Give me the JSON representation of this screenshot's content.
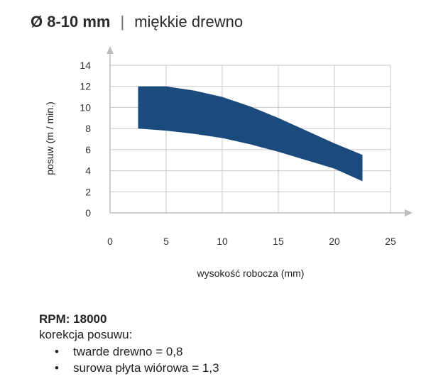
{
  "header": {
    "diameter": "Ø 8-10 mm",
    "separator": "|",
    "material": "miękkie drewno"
  },
  "chart_data": {
    "type": "area",
    "title": "",
    "xlabel": "wysokość robocza (mm)",
    "ylabel": "posuw (m / min.)",
    "xlim": [
      0,
      25
    ],
    "ylim": [
      0,
      14
    ],
    "x_ticks": [
      "0",
      "5",
      "10",
      "15",
      "20",
      "25"
    ],
    "y_ticks": [
      "0",
      "2",
      "4",
      "6",
      "8",
      "10",
      "12",
      "14"
    ],
    "grid": true,
    "series": [
      {
        "upper": {
          "x": [
            2.5,
            5,
            7.5,
            10,
            12.5,
            15,
            17.5,
            20,
            22.5
          ],
          "y": [
            12,
            12,
            11.6,
            11,
            10.1,
            9,
            7.8,
            6.6,
            5.5
          ]
        },
        "lower": {
          "x": [
            2.5,
            5,
            7.5,
            10,
            12.5,
            15,
            17.5,
            20,
            22.5
          ],
          "y": [
            8,
            7.8,
            7.5,
            7.1,
            6.5,
            5.8,
            5.0,
            4.2,
            3.0
          ]
        }
      }
    ],
    "fill_color": "#1b4a7d",
    "grid_color": "#c8c8c8",
    "axis_color": "#bdbdbd"
  },
  "footer": {
    "rpm": "RPM: 18000",
    "correction_title": "korekcja posuwu:",
    "notes": [
      {
        "bullet": "•",
        "text": "twarde drewno = 0,8"
      },
      {
        "bullet": "•",
        "text": "surowa płyta wiórowa = 1,3"
      }
    ]
  }
}
